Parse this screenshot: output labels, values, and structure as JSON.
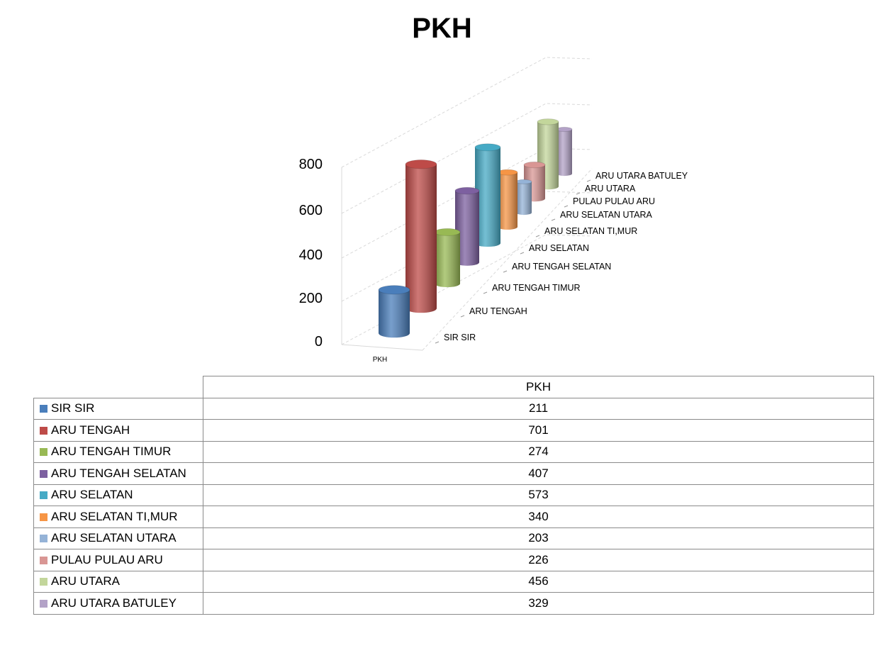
{
  "chart_data": {
    "type": "bar",
    "style": "3d-cylinder",
    "title": "PKH",
    "series_label": "PKH",
    "categories": [
      "SIR SIR",
      "ARU TENGAH",
      "ARU TENGAH TIMUR",
      "ARU TENGAH SELATAN",
      "ARU SELATAN",
      "ARU SELATAN TI,MUR",
      "ARU SELATAN UTARA",
      "PULAU PULAU ARU",
      "ARU UTARA",
      "ARU UTARA BATULEY"
    ],
    "values": [
      211,
      701,
      274,
      407,
      573,
      340,
      203,
      226,
      456,
      329
    ],
    "colors": [
      "#4a7ebb",
      "#be4b48",
      "#98b954",
      "#7d60a0",
      "#46aac5",
      "#f69545",
      "#95b3d7",
      "#d99694",
      "#c3d69b",
      "#b3a2c7"
    ],
    "yticks": [
      "0",
      "200",
      "400",
      "600",
      "800"
    ],
    "ylim": [
      0,
      800
    ],
    "grid": true,
    "legend": "data-table-below"
  },
  "table": {
    "header": "PKH"
  }
}
